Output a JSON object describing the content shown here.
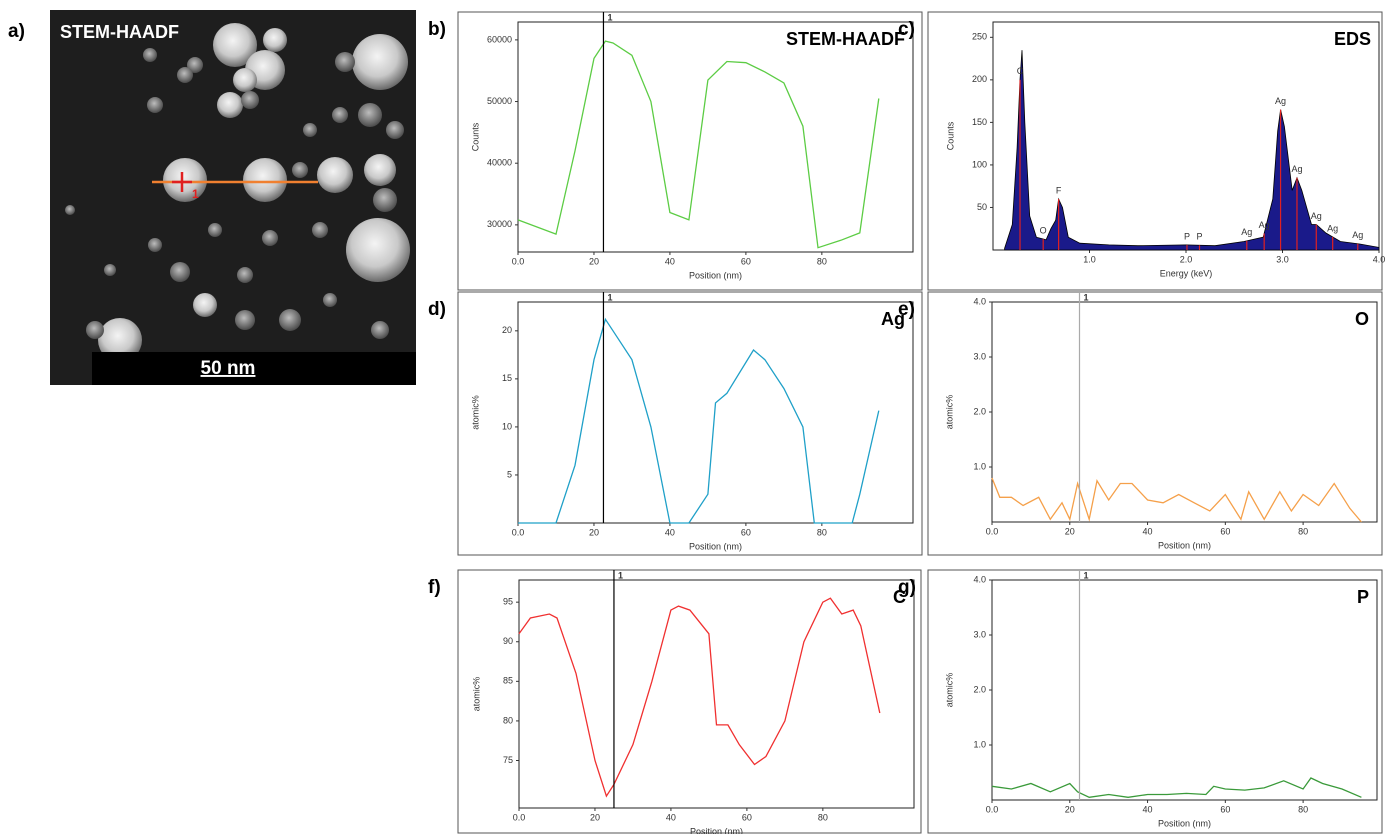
{
  "image_panel": {
    "label": "a)",
    "title": "STEM-HAADF",
    "scale_bar": "50 nm",
    "marker": "1"
  },
  "chart_data": [
    {
      "type": "line",
      "panel_label": "b)",
      "title": "STEM-HAADF",
      "x_label": "Position (nm)",
      "y_label": "Counts",
      "x": [
        0,
        10,
        15,
        20,
        23,
        25,
        30,
        35,
        40,
        45,
        50,
        55,
        60,
        65,
        70,
        75,
        79,
        85,
        90,
        95
      ],
      "values": [
        30800,
        28500,
        42000,
        57000,
        59800,
        59500,
        57500,
        50000,
        32000,
        30800,
        53500,
        56500,
        56300,
        54800,
        53000,
        46000,
        26300,
        27500,
        28700,
        50500
      ],
      "color": "#5ccc44",
      "xlim": [
        0,
        104
      ],
      "ylim": [
        25600,
        62900
      ],
      "xticks": [
        {
          "value": 0,
          "label": "0.0"
        },
        20,
        40,
        60,
        80
      ],
      "yticks": [
        30000,
        40000,
        50000,
        60000
      ],
      "cursor": {
        "value": 22.5,
        "label": "1",
        "color": "#000000"
      }
    },
    {
      "type": "spectrum",
      "panel_label": "c)",
      "title": "EDS",
      "x_label": "Energy (keV)",
      "y_label": "Counts",
      "x": [
        0.12,
        0.2,
        0.25,
        0.28,
        0.3,
        0.33,
        0.38,
        0.45,
        0.55,
        0.6,
        0.65,
        0.68,
        0.72,
        0.78,
        0.9,
        1.2,
        1.5,
        2.0,
        2.3,
        2.6,
        2.8,
        2.9,
        2.95,
        2.98,
        3.02,
        3.1,
        3.15,
        3.2,
        3.3,
        3.35,
        3.45,
        3.6,
        3.8,
        4.0
      ],
      "values": [
        2,
        30,
        120,
        200,
        235,
        150,
        40,
        15,
        12,
        25,
        35,
        60,
        50,
        15,
        8,
        6,
        5,
        6,
        5,
        10,
        15,
        60,
        140,
        165,
        145,
        70,
        85,
        70,
        30,
        30,
        20,
        10,
        7,
        3
      ],
      "color": "#1a1a8a",
      "peak_color": "#e02020",
      "peaks": [
        {
          "label": "C",
          "energy": 0.28
        },
        {
          "label": "O",
          "energy": 0.52
        },
        {
          "label": "F",
          "energy": 0.68
        },
        {
          "label": "P",
          "energy": 2.01
        },
        {
          "label": "P",
          "energy": 2.14
        },
        {
          "label": "Ag",
          "energy": 2.63
        },
        {
          "label": "Ag",
          "energy": 2.81
        },
        {
          "label": "Ag",
          "energy": 2.98
        },
        {
          "label": "Ag",
          "energy": 3.15
        },
        {
          "label": "Ag",
          "energy": 3.35
        },
        {
          "label": "Ag",
          "energy": 3.52
        },
        {
          "label": "Ag",
          "energy": 3.78
        }
      ],
      "xlim": [
        0,
        4.0
      ],
      "ylim": [
        0,
        268
      ],
      "xticks": [
        {
          "value": 1,
          "label": "1.0"
        },
        {
          "value": 2,
          "label": "2.0"
        },
        {
          "value": 3,
          "label": "3.0"
        },
        {
          "value": 4,
          "label": "4.0"
        }
      ],
      "yticks": [
        50,
        100,
        150,
        200,
        250
      ]
    },
    {
      "type": "line",
      "panel_label": "d)",
      "title": "Ag",
      "x_label": "Position (nm)",
      "y_label": "atomic%",
      "x": [
        0,
        10,
        15,
        20,
        23,
        25,
        30,
        35,
        40,
        45,
        50,
        52,
        55,
        62,
        65,
        70,
        75,
        78,
        85,
        88,
        90,
        95
      ],
      "values": [
        0,
        0,
        6,
        17,
        21.2,
        20,
        17,
        10,
        0,
        0,
        3,
        12.5,
        13.5,
        18,
        17,
        14,
        10,
        0,
        0,
        0,
        3,
        11.7
      ],
      "color": "#1fa0c8",
      "xlim": [
        0,
        104
      ],
      "ylim": [
        0,
        23
      ],
      "xticks": [
        {
          "value": 0,
          "label": "0.0"
        },
        20,
        40,
        60,
        80
      ],
      "yticks": [
        5,
        10,
        15,
        20
      ],
      "cursor": {
        "value": 22.5,
        "label": "1",
        "color": "#000000"
      }
    },
    {
      "type": "line",
      "panel_label": "e)",
      "title": "O",
      "x_label": "Position (nm)",
      "y_label": "atomic%",
      "x": [
        0,
        2,
        5,
        8,
        12,
        15,
        18,
        20,
        22,
        25,
        27,
        30,
        33,
        36,
        40,
        44,
        48,
        52,
        56,
        60,
        64,
        66,
        70,
        74,
        77,
        80,
        84,
        88,
        92,
        95
      ],
      "values": [
        0.8,
        0.45,
        0.45,
        0.3,
        0.45,
        0.05,
        0.35,
        0.05,
        0.7,
        0.05,
        0.75,
        0.4,
        0.7,
        0.7,
        0.4,
        0.35,
        0.5,
        0.35,
        0.2,
        0.5,
        0.05,
        0.55,
        0.05,
        0.55,
        0.2,
        0.5,
        0.3,
        0.7,
        0.25,
        0
      ],
      "color": "#f5a04a",
      "xlim": [
        0,
        99
      ],
      "ylim": [
        0,
        4
      ],
      "xticks": [
        {
          "value": 0,
          "label": "0.0"
        },
        20,
        40,
        60,
        80
      ],
      "yticks": [
        {
          "value": 1,
          "label": "1.0"
        },
        {
          "value": 2,
          "label": "2.0"
        },
        {
          "value": 3,
          "label": "3.0"
        },
        {
          "value": 4,
          "label": "4.0"
        }
      ],
      "cursor": {
        "value": 22.5,
        "label": "1",
        "color": "#aaaaaa"
      }
    },
    {
      "type": "line",
      "panel_label": "f)",
      "title": "C",
      "x_label": "Position (nm)",
      "y_label": "atomic%",
      "x": [
        0,
        3,
        8,
        10,
        15,
        20,
        23,
        25,
        30,
        35,
        40,
        42,
        45,
        50,
        52,
        55,
        58,
        62,
        65,
        70,
        75,
        80,
        82,
        85,
        88,
        90,
        95
      ],
      "values": [
        91,
        93,
        93.5,
        93,
        86,
        75,
        70.5,
        72,
        77,
        85,
        94,
        94.5,
        94,
        91,
        79.5,
        79.5,
        77,
        74.5,
        75.5,
        80,
        90,
        95,
        95.5,
        93.5,
        94,
        92,
        81
      ],
      "color": "#f03030",
      "xlim": [
        0,
        104
      ],
      "ylim": [
        69,
        97.8
      ],
      "xticks": [
        {
          "value": 0,
          "label": "0.0"
        },
        20,
        40,
        60,
        80
      ],
      "yticks": [
        75,
        80,
        85,
        90,
        95
      ],
      "cursor": {
        "value": 25,
        "label": "1",
        "color": "#000000"
      }
    },
    {
      "type": "line",
      "panel_label": "g)",
      "title": "P",
      "x_label": "Position (nm)",
      "y_label": "atomic%",
      "x": [
        0,
        5,
        10,
        15,
        20,
        22,
        25,
        30,
        35,
        40,
        45,
        50,
        55,
        57,
        60,
        65,
        70,
        75,
        80,
        82,
        85,
        90,
        95
      ],
      "values": [
        0.25,
        0.2,
        0.3,
        0.15,
        0.3,
        0.15,
        0.05,
        0.1,
        0.05,
        0.1,
        0.1,
        0.12,
        0.1,
        0.25,
        0.2,
        0.18,
        0.22,
        0.35,
        0.2,
        0.4,
        0.3,
        0.2,
        0.05
      ],
      "color": "#3a9a3a",
      "xlim": [
        0,
        99
      ],
      "ylim": [
        0,
        4
      ],
      "xticks": [
        {
          "value": 0,
          "label": "0.0"
        },
        20,
        40,
        60,
        80
      ],
      "yticks": [
        {
          "value": 1,
          "label": "1.0"
        },
        {
          "value": 2,
          "label": "2.0"
        },
        {
          "value": 3,
          "label": "3.0"
        },
        {
          "value": 4,
          "label": "4.0"
        }
      ],
      "cursor": {
        "value": 22.5,
        "label": "1",
        "color": "#aaaaaa"
      }
    }
  ]
}
